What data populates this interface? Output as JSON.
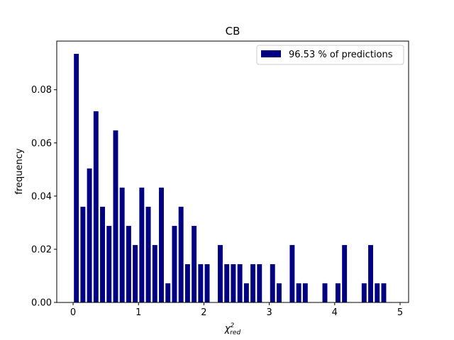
{
  "chart_data": {
    "type": "bar",
    "title": "CB",
    "xlabel_main": "χ",
    "xlabel_sup": "2",
    "xlabel_sub": "red",
    "ylabel": "frequency",
    "xlim": [
      -0.25,
      5.13
    ],
    "ylim": [
      0.0,
      0.0983
    ],
    "xticks": [
      0,
      1,
      2,
      3,
      4,
      5
    ],
    "xtick_labels": [
      "0",
      "1",
      "2",
      "3",
      "4",
      "5"
    ],
    "yticks": [
      0.0,
      0.02,
      0.04,
      0.06,
      0.08
    ],
    "ytick_labels": [
      "0.00",
      "0.02",
      "0.04",
      "0.06",
      "0.08"
    ],
    "bar_width": 0.075,
    "x": [
      0.05,
      0.15,
      0.25,
      0.35,
      0.45,
      0.55,
      0.65,
      0.75,
      0.85,
      0.95,
      1.05,
      1.15,
      1.25,
      1.35,
      1.45,
      1.55,
      1.65,
      1.75,
      1.85,
      1.95,
      2.05,
      2.15,
      2.25,
      2.35,
      2.45,
      2.55,
      2.65,
      2.75,
      2.85,
      2.95,
      3.05,
      3.15,
      3.25,
      3.35,
      3.45,
      3.55,
      3.65,
      3.75,
      3.85,
      3.95,
      4.05,
      4.15,
      4.25,
      4.35,
      4.45,
      4.55,
      4.65,
      4.75,
      4.85,
      4.95
    ],
    "values": [
      0.0935,
      0.036,
      0.0504,
      0.0719,
      0.036,
      0.0288,
      0.0647,
      0.0432,
      0.0288,
      0.0216,
      0.0432,
      0.036,
      0.0216,
      0.0432,
      0.0072,
      0.0288,
      0.036,
      0.0144,
      0.0288,
      0.0144,
      0.0144,
      0.0,
      0.0216,
      0.0144,
      0.0144,
      0.0144,
      0.0072,
      0.0144,
      0.0144,
      0.0,
      0.0144,
      0.0072,
      0.0,
      0.0216,
      0.0072,
      0.0072,
      0.0,
      0.0,
      0.0072,
      0.0,
      0.0072,
      0.0216,
      0.0,
      0.0,
      0.0072,
      0.0216,
      0.0072,
      0.0072,
      0.0,
      0.0
    ],
    "color": "#000080",
    "legend": {
      "label": "96.53 % of predictions",
      "position": "top-right"
    },
    "grid": false
  }
}
